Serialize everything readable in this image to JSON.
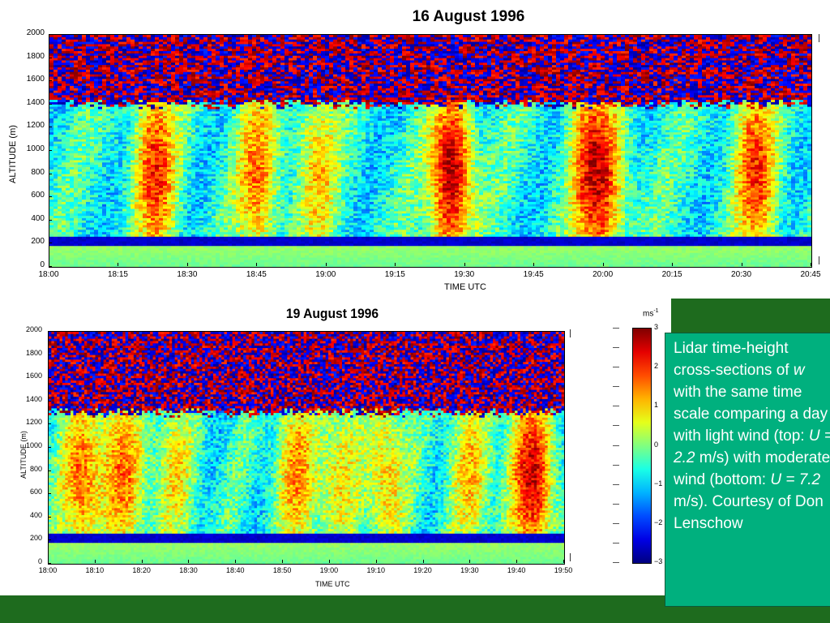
{
  "chart_data": [
    {
      "type": "heatmap",
      "title": "16 August 1996",
      "xlabel": "TIME UTC",
      "ylabel": "ALTITUDE (m)",
      "x_ticks": [
        "18:00",
        "18:15",
        "18:30",
        "18:45",
        "19:00",
        "19:15",
        "19:30",
        "19:45",
        "20:00",
        "20:15",
        "20:30",
        "20:45"
      ],
      "y_ticks": [
        "0",
        "200",
        "400",
        "600",
        "800",
        "1000",
        "1200",
        "1400",
        "1600",
        "1800",
        "2000"
      ],
      "xlim": [
        "18:00",
        "20:45"
      ],
      "ylim": [
        0,
        2000
      ],
      "colormap": "jet",
      "boundary_layer_top_m": 1400,
      "plumes": [
        {
          "time": "18:23",
          "strength": 1.0
        },
        {
          "time": "18:45",
          "strength": 0.8
        },
        {
          "time": "18:58",
          "strength": 0.6
        },
        {
          "time": "19:27",
          "strength": 1.2
        },
        {
          "time": "19:57",
          "strength": 0.9
        },
        {
          "time": "20:01",
          "strength": 0.6
        },
        {
          "time": "20:33",
          "strength": 1.0
        }
      ],
      "wind_speed": "2.2 m/s"
    },
    {
      "type": "heatmap",
      "title": "19 August 1996",
      "xlabel": "TIME UTC",
      "ylabel": "ALTITUDE (m)",
      "x_ticks": [
        "18:00",
        "18:10",
        "18:20",
        "18:30",
        "18:40",
        "18:50",
        "19:00",
        "19:10",
        "19:20",
        "19:30",
        "19:40",
        "19:50"
      ],
      "y_ticks": [
        "0",
        "200",
        "400",
        "600",
        "800",
        "1000",
        "1200",
        "1400",
        "1600",
        "1800",
        "2000"
      ],
      "xlim": [
        "18:00",
        "19:50"
      ],
      "ylim": [
        0,
        2000
      ],
      "colormap": "jet",
      "boundary_layer_top_m": 1300,
      "plumes": [
        {
          "time": "18:07",
          "strength": 0.8
        },
        {
          "time": "18:16",
          "strength": 0.8
        },
        {
          "time": "18:27",
          "strength": 0.5
        },
        {
          "time": "18:53",
          "strength": 0.7
        },
        {
          "time": "19:02",
          "strength": 0.5
        },
        {
          "time": "19:12",
          "strength": 0.6
        },
        {
          "time": "19:30",
          "strength": 0.6
        },
        {
          "time": "19:43",
          "strength": 1.2
        }
      ],
      "wind_speed": "7.2 m/s"
    }
  ],
  "colorbar": {
    "unit": "ms",
    "unit_exp": "-1",
    "ticks": [
      "3",
      "2",
      "1",
      "0",
      "−1",
      "−2",
      "−3"
    ],
    "range": [
      -3,
      3
    ]
  },
  "caption": {
    "line1": "Lidar  time-height cross-sections of ",
    "w": "w",
    "line2": " with the same time scale comparing a day with light wind (top: ",
    "u1_label": "U = 2.2",
    "line3": " m/s) with moderate wind (bottom: ",
    "u2_label": "U = 7.2",
    "line4": " m/s). Courtesy of Don Lenschow"
  },
  "colors": {
    "green_bar": "#1e6b1e",
    "caption_bg": "#00b07e",
    "caption_text": "#ffffff"
  }
}
